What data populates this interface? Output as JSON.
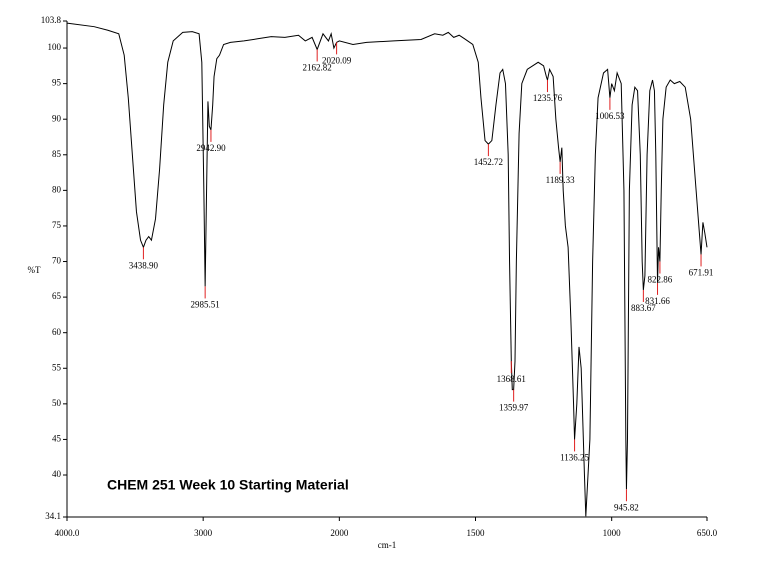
{
  "chart_data": {
    "type": "line",
    "annotation": "CHEM 251 Week 10 Starting Material",
    "ylabel": "%T",
    "xlabel": "cm-1",
    "xlim": [
      4000,
      650
    ],
    "x_scale_break": 2000,
    "x_scale_factor": 2,
    "xticks": [
      {
        "value": 4000,
        "label": "4000.0"
      },
      3000,
      2000,
      1500,
      1000,
      {
        "value": 650,
        "label": "650.0"
      }
    ],
    "ylim": [
      34.1,
      103.8
    ],
    "yticks": [
      103.8,
      100,
      95,
      90,
      85,
      80,
      75,
      70,
      65,
      60,
      55,
      50,
      45,
      40,
      34.1
    ],
    "x": [
      4000,
      3800,
      3700,
      3620,
      3580,
      3550,
      3520,
      3490,
      3460,
      3438.9,
      3420,
      3400,
      3380,
      3350,
      3320,
      3290,
      3260,
      3220,
      3150,
      3080,
      3030,
      3010,
      2995,
      2985.5,
      2975,
      2965,
      2955,
      2942.9,
      2930,
      2920,
      2900,
      2880,
      2850,
      2800,
      2700,
      2600,
      2500,
      2400,
      2300,
      2250,
      2200,
      2162.8,
      2120,
      2080,
      2060,
      2040,
      2020,
      2000,
      1950,
      1900,
      1800,
      1700,
      1650,
      1620,
      1600,
      1580,
      1560,
      1540,
      1510,
      1490,
      1480,
      1465,
      1452.7,
      1440,
      1425,
      1410,
      1400,
      1390,
      1380,
      1375,
      1368.6,
      1365,
      1360,
      1355,
      1350,
      1340,
      1330,
      1310,
      1290,
      1270,
      1250,
      1240,
      1235.8,
      1228,
      1215,
      1205,
      1195,
      1189.3,
      1183,
      1178,
      1170,
      1160,
      1150,
      1140,
      1136.3,
      1128,
      1120,
      1112,
      1100,
      1095,
      1080,
      1070,
      1060,
      1050,
      1030,
      1015,
      1006.5,
      1000,
      990,
      980,
      965,
      955,
      948,
      945.8,
      942,
      935,
      925,
      915,
      905,
      895,
      888,
      883.7,
      878,
      870,
      860,
      850,
      843,
      838,
      831.7,
      828,
      822.9,
      818,
      812,
      800,
      785,
      770,
      750,
      730,
      710,
      690,
      680,
      671.9,
      665,
      658,
      650
    ],
    "series": [
      {
        "color": "#000000",
        "values": [
          103.5,
          103,
          102.5,
          102,
          99,
          93,
          85,
          77,
          73,
          72,
          73,
          73.5,
          73,
          76,
          83,
          92,
          98,
          101,
          102.2,
          102.3,
          102,
          98,
          80,
          66.5,
          80,
          92.5,
          89,
          88.5,
          92,
          96,
          98.5,
          99,
          100.5,
          100.8,
          101,
          101.3,
          101.6,
          101.5,
          101.8,
          101,
          101.5,
          99.8,
          102,
          101,
          102,
          100,
          100.8,
          101,
          100.5,
          100.8,
          101,
          101.2,
          102,
          101.8,
          102.2,
          101.5,
          101.8,
          101.3,
          100.5,
          98,
          93,
          87,
          86.5,
          87,
          92,
          96.5,
          97,
          95,
          85,
          70,
          56,
          52,
          52,
          56,
          70,
          88,
          95,
          97,
          97.5,
          98,
          97.5,
          96,
          95.5,
          97,
          96,
          90,
          86,
          84,
          86,
          80,
          75,
          72,
          62,
          50,
          45,
          50,
          58,
          55,
          40,
          34.2,
          45,
          70,
          85,
          93,
          96.5,
          97,
          93,
          95,
          94,
          96.5,
          95,
          80,
          45,
          38,
          45,
          80,
          92,
          94.5,
          94,
          85,
          70,
          66,
          68,
          85,
          94,
          95.5,
          94,
          85,
          67,
          72,
          70,
          80,
          90,
          94.5,
          95.5,
          95,
          95.3,
          94.5,
          90,
          80,
          75,
          71,
          75.5,
          74,
          72
        ]
      }
    ],
    "peaks": {
      "color": "#e02020",
      "x": [
        3438.9,
        2985.51,
        2942.9,
        2162.82,
        2020.09,
        1452.72,
        1359.97,
        1368.61,
        1235.76,
        1189.33,
        1136.25,
        1006.53,
        945.82,
        883.67,
        831.66,
        822.86,
        671.91
      ],
      "y": [
        72,
        66.5,
        88.5,
        99.8,
        100.8,
        86.5,
        52,
        56,
        95.5,
        84,
        45,
        93,
        38,
        66,
        67,
        70,
        71
      ],
      "value_labels": [
        "3438.90",
        "2985.51",
        "2942.90",
        "2162.82",
        "2020.09",
        "1452.72",
        "1359.97",
        "1368.61",
        "1235.76",
        "1189.33",
        "1136.25",
        "1006.53",
        "945.82",
        "883.67",
        "831.66",
        "822.86",
        "671.91"
      ]
    }
  }
}
